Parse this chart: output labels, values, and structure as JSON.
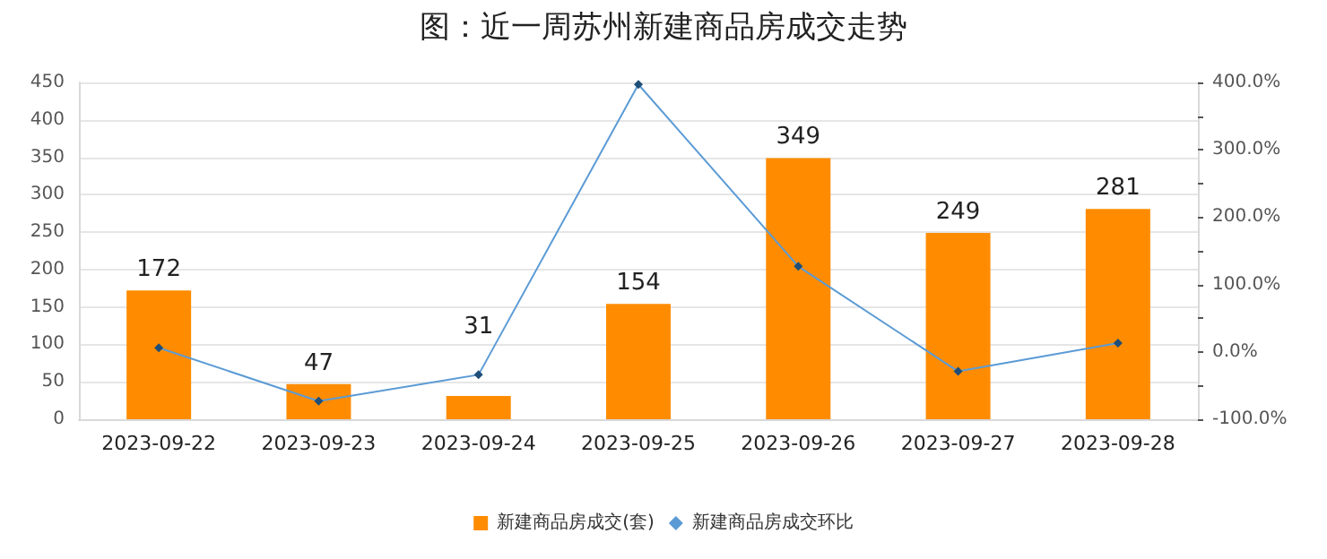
{
  "chart_data": {
    "type": "bar",
    "title": "图：近一周苏州新建商品房成交走势",
    "categories": [
      "2023-09-22",
      "2023-09-23",
      "2023-09-24",
      "2023-09-25",
      "2023-09-26",
      "2023-09-27",
      "2023-09-28"
    ],
    "series": [
      {
        "name": "新建商品房成交(套)",
        "color": "#ff8c00",
        "values": [
          172,
          47,
          31,
          154,
          349,
          249,
          281
        ],
        "data_labels": true
      },
      {
        "name": "新建商品房成交环比",
        "type": "line",
        "axis": "y2",
        "color": "#5b9bd5",
        "marker": "diamond",
        "values": [
          6,
          -73,
          -34,
          397,
          127,
          -29,
          13
        ]
      }
    ],
    "ylim": [
      0,
      450
    ],
    "yticks": [
      0,
      50,
      100,
      150,
      200,
      250,
      300,
      350,
      400,
      450
    ],
    "y2lim": [
      -100,
      400
    ],
    "y2ticks": [
      {
        "value": -100,
        "label": "-100.0%"
      },
      {
        "value": -50,
        "label": null
      },
      {
        "value": 0,
        "label": "0.0%"
      },
      {
        "value": 50,
        "label": null
      },
      {
        "value": 100,
        "label": "100.0%"
      },
      {
        "value": 150,
        "label": null
      },
      {
        "value": 200,
        "label": "200.0%"
      },
      {
        "value": 250,
        "label": null
      },
      {
        "value": 300,
        "label": "300.0%"
      },
      {
        "value": 350,
        "label": null
      },
      {
        "value": 400,
        "label": "400.0%"
      }
    ],
    "grid": "y",
    "legend": "bottom"
  }
}
